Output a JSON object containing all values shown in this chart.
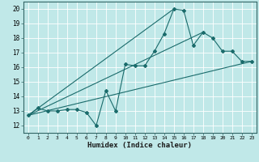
{
  "xlabel": "Humidex (Indice chaleur)",
  "bg_color": "#c0e8e8",
  "line_color": "#1a6b6b",
  "grid_color": "#ffffff",
  "xlim": [
    -0.5,
    23.5
  ],
  "ylim": [
    11.5,
    20.5
  ],
  "xticks": [
    0,
    1,
    2,
    3,
    4,
    5,
    6,
    7,
    8,
    9,
    10,
    11,
    12,
    13,
    14,
    15,
    16,
    17,
    18,
    19,
    20,
    21,
    22,
    23
  ],
  "yticks": [
    12,
    13,
    14,
    15,
    16,
    17,
    18,
    19,
    20
  ],
  "curve_x": [
    0,
    1,
    2,
    3,
    4,
    5,
    6,
    7,
    8,
    9,
    10,
    11,
    12,
    13,
    14,
    15,
    16,
    17,
    18,
    19,
    20,
    21,
    22,
    23
  ],
  "curve_y": [
    12.7,
    13.2,
    13.0,
    13.0,
    13.1,
    13.1,
    12.9,
    12.0,
    14.4,
    13.0,
    16.2,
    16.1,
    16.1,
    17.1,
    18.3,
    20.0,
    19.9,
    17.5,
    18.4,
    18.0,
    17.1,
    17.1,
    16.4,
    16.4
  ],
  "line1_x": [
    0,
    23
  ],
  "line1_y": [
    12.7,
    16.4
  ],
  "line2_x": [
    0,
    18
  ],
  "line2_y": [
    12.7,
    18.4
  ],
  "line3_x": [
    0,
    15
  ],
  "line3_y": [
    12.7,
    20.0
  ]
}
